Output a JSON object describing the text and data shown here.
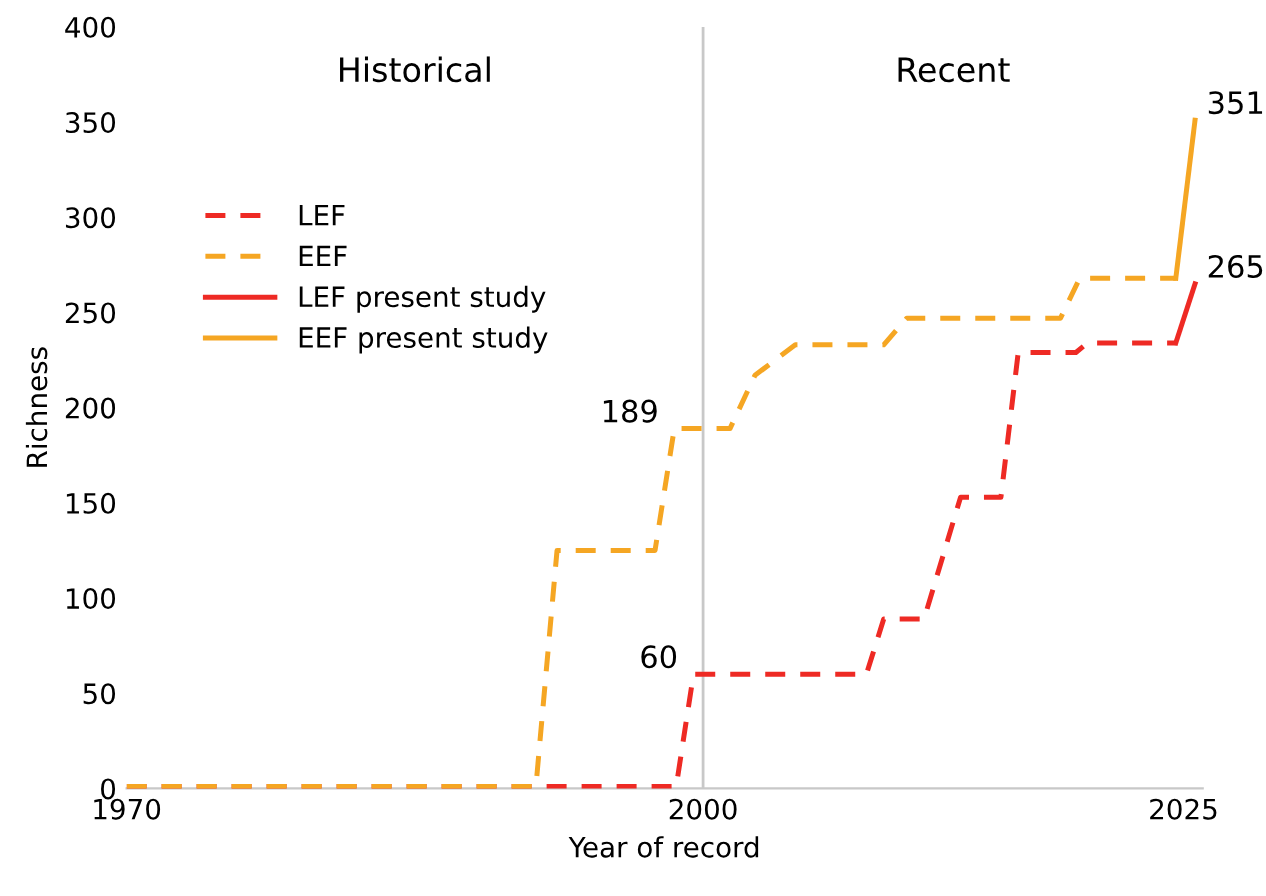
{
  "chart_data": {
    "type": "line",
    "xlabel": "Year of record",
    "ylabel": "Richness",
    "xlim": [
      1970,
      2026
    ],
    "xticks": [
      1970,
      2000,
      2025
    ],
    "ylim": [
      0,
      400
    ],
    "yticks": [
      0,
      50,
      100,
      150,
      200,
      250,
      300,
      350,
      400
    ],
    "grid": false,
    "legend": "top left",
    "marker": "none",
    "series": [
      {
        "name": "LEF",
        "color": "#ee2a24",
        "line_style": "dashed",
        "x": [
          1970,
          1998.6,
          1999.5,
          2008.5,
          2009.4,
          2011.5,
          2013.4,
          2015.5,
          2016.4,
          2019.4,
          2020,
          2024.6
        ],
        "values": [
          1,
          1,
          60,
          60,
          89,
          89,
          153,
          153,
          229,
          229,
          234,
          234
        ]
      },
      {
        "name": "EEF",
        "color": "#f5a623",
        "line_style": "dashed",
        "x": [
          1970,
          1991.3,
          1992.4,
          1997.5,
          1998.5,
          2001.4,
          2002.7,
          2004.8,
          2009.4,
          2010.6,
          2018.6,
          2019.6,
          2024.6
        ],
        "values": [
          1,
          1,
          125,
          125,
          189,
          189,
          217,
          233,
          233,
          247,
          247,
          268,
          268
        ]
      },
      {
        "name": "LEF present study",
        "color": "#ee2a24",
        "line_style": "solid",
        "x": [
          2024.6,
          2025.6
        ],
        "values": [
          234,
          265
        ]
      },
      {
        "name": "EEF present study",
        "color": "#f5a623",
        "line_style": "solid",
        "x": [
          2024.6,
          2025.6
        ],
        "values": [
          268,
          351
        ]
      }
    ],
    "ref_lines": [
      {
        "axis": "x",
        "value": 2000,
        "color": "#c8c8c8",
        "line_style": "solid"
      }
    ],
    "annotations": [
      "Historical",
      "Recent",
      {
        "text": "189",
        "x": 1998.5,
        "y": 189
      },
      {
        "text": "60",
        "x": 1999.5,
        "y": 60
      },
      {
        "text": "351",
        "x": 2025.6,
        "y": 351
      },
      {
        "text": "265",
        "x": 2025.6,
        "y": 265
      }
    ]
  }
}
